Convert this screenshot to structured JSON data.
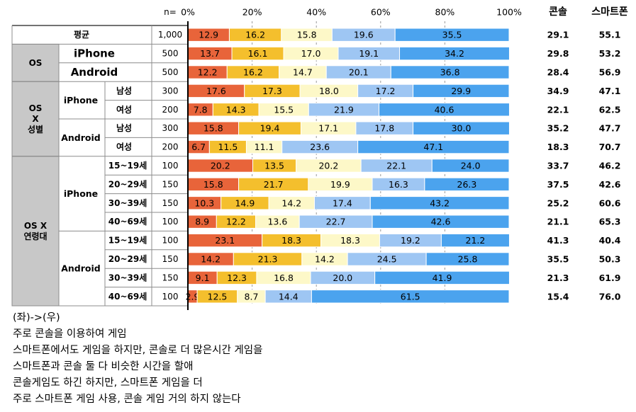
{
  "chart_data": {
    "type": "bar",
    "stacked": true,
    "orientation": "horizontal",
    "n_label": "n=",
    "axis_ticks": [
      "0%",
      "20%",
      "40%",
      "60%",
      "80%",
      "100%"
    ],
    "xlim": [
      0,
      100
    ],
    "extra_headers": [
      "콘솔",
      "스마트폰"
    ],
    "series_colors": [
      "#e8643a",
      "#f4bf2d",
      "#fdf8c8",
      "#9ec6f3",
      "#4ba3ee"
    ],
    "group_labels": [
      {
        "text": "OS",
        "start": 1,
        "end": 2
      },
      {
        "text": "OS\nX\n성별",
        "start": 3,
        "end": 6
      },
      {
        "text": "OS X\n연령대",
        "start": 7,
        "end": 14
      }
    ],
    "sub_labels": [
      {
        "text": "iPhone",
        "start": 3,
        "end": 4
      },
      {
        "text": "Android",
        "start": 5,
        "end": 6
      },
      {
        "text": "iPhone",
        "start": 7,
        "end": 10
      },
      {
        "text": "Android",
        "start": 11,
        "end": 14
      }
    ],
    "rows": [
      {
        "label": "평균",
        "n": "1,000",
        "values": [
          12.9,
          16.2,
          15.8,
          19.6,
          35.5
        ],
        "console": "29.1",
        "smartphone": "55.1"
      },
      {
        "label": "iPhone",
        "n": "500",
        "values": [
          13.7,
          16.1,
          17.0,
          19.1,
          34.2
        ],
        "console": "29.8",
        "smartphone": "53.2"
      },
      {
        "label": "Android",
        "n": "500",
        "values": [
          12.2,
          16.2,
          14.7,
          20.1,
          36.8
        ],
        "console": "28.4",
        "smartphone": "56.9"
      },
      {
        "label": "남성",
        "n": "300",
        "values": [
          17.6,
          17.3,
          18.0,
          17.2,
          29.9
        ],
        "console": "34.9",
        "smartphone": "47.1"
      },
      {
        "label": "여성",
        "n": "200",
        "values": [
          7.8,
          14.3,
          15.5,
          21.9,
          40.6
        ],
        "console": "22.1",
        "smartphone": "62.5"
      },
      {
        "label": "남성",
        "n": "300",
        "values": [
          15.8,
          19.4,
          17.1,
          17.8,
          30.0
        ],
        "console": "35.2",
        "smartphone": "47.7"
      },
      {
        "label": "여성",
        "n": "200",
        "values": [
          6.7,
          11.5,
          11.1,
          23.6,
          47.1
        ],
        "console": "18.3",
        "smartphone": "70.7"
      },
      {
        "label": "15~19세",
        "n": "100",
        "values": [
          20.2,
          13.5,
          20.2,
          22.1,
          24.0
        ],
        "console": "33.7",
        "smartphone": "46.2"
      },
      {
        "label": "20~29세",
        "n": "150",
        "values": [
          15.8,
          21.7,
          19.9,
          16.3,
          26.3
        ],
        "console": "37.5",
        "smartphone": "42.6"
      },
      {
        "label": "30~39세",
        "n": "150",
        "values": [
          10.3,
          14.9,
          14.2,
          17.4,
          43.2
        ],
        "console": "25.2",
        "smartphone": "60.6"
      },
      {
        "label": "40~69세",
        "n": "100",
        "values": [
          8.9,
          12.2,
          13.6,
          22.7,
          42.6
        ],
        "console": "21.1",
        "smartphone": "65.3"
      },
      {
        "label": "15~19세",
        "n": "100",
        "values": [
          23.1,
          18.3,
          18.3,
          19.2,
          21.2
        ],
        "console": "41.3",
        "smartphone": "40.4"
      },
      {
        "label": "20~29세",
        "n": "150",
        "values": [
          14.2,
          21.3,
          14.2,
          24.5,
          25.8
        ],
        "console": "35.5",
        "smartphone": "50.3"
      },
      {
        "label": "30~39세",
        "n": "150",
        "values": [
          9.1,
          12.3,
          16.8,
          20.0,
          41.9
        ],
        "console": "21.3",
        "smartphone": "61.9"
      },
      {
        "label": "40~69세",
        "n": "100",
        "values": [
          2.9,
          12.5,
          8.7,
          14.4,
          61.5
        ],
        "console": "15.4",
        "smartphone": "76.0"
      }
    ]
  },
  "legend_notes": {
    "heading": "(좌)->(우)",
    "items": [
      "주로 콘솔을 이용하여 게임",
      "스마트폰에서도 게임을 하지만, 콘솔로 더 많은시간 게임을",
      "스마트폰과 콘솔 둘 다 비슷한 시간을 할애",
      "콘솔게임도 하긴 하지만, 스마트폰 게임을 더",
      "주로 스마트폰 게임 사용, 콘솔 게임 거의 하지 않는다"
    ]
  }
}
